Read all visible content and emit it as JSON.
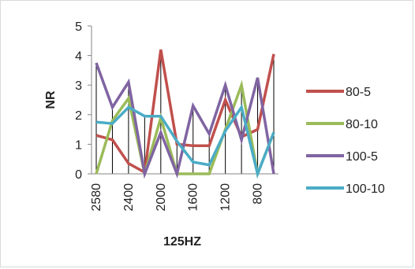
{
  "chart_data": {
    "type": "line",
    "title": "",
    "xlabel": "125HZ",
    "ylabel": "NR",
    "ylim": [
      0,
      5
    ],
    "yticks": [
      "0",
      "1",
      "2",
      "3",
      "4",
      "5"
    ],
    "categories": [
      "2580",
      "",
      "2400",
      "",
      "2000",
      "",
      "1600",
      "",
      "1200",
      "",
      "800",
      ""
    ],
    "grid": "vertical drop lines at each category",
    "legend_position": "right",
    "series": [
      {
        "name": "80-5",
        "color": "#c0504d",
        "values": [
          1.3,
          1.15,
          0.35,
          0.05,
          4.2,
          1.0,
          0.95,
          0.95,
          2.5,
          1.25,
          1.5,
          4.05
        ]
      },
      {
        "name": "80-10",
        "color": "#9bbb59",
        "values": [
          0.0,
          1.8,
          2.55,
          0.0,
          1.9,
          0.0,
          0.0,
          0.0,
          1.5,
          3.0,
          0.0,
          1.4
        ]
      },
      {
        "name": "100-5",
        "color": "#8064a2",
        "values": [
          3.75,
          2.25,
          3.1,
          0.0,
          1.4,
          0.0,
          2.3,
          1.35,
          3.0,
          1.15,
          3.25,
          0.0
        ]
      },
      {
        "name": "100-10",
        "color": "#4bacc6",
        "values": [
          1.75,
          1.7,
          2.25,
          1.95,
          1.95,
          1.1,
          0.4,
          0.3,
          1.45,
          2.25,
          0.0,
          1.4
        ]
      }
    ]
  }
}
